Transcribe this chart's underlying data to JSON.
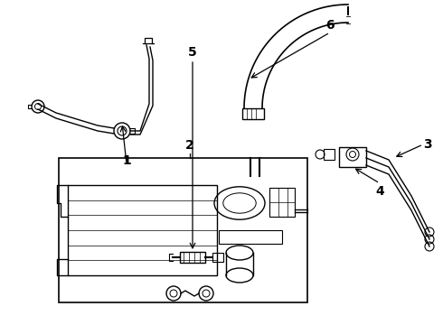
{
  "background_color": "#ffffff",
  "line_color": "#000000",
  "figsize": [
    4.9,
    3.6
  ],
  "dpi": 100,
  "xlim": [
    0,
    490
  ],
  "ylim": [
    0,
    360
  ]
}
